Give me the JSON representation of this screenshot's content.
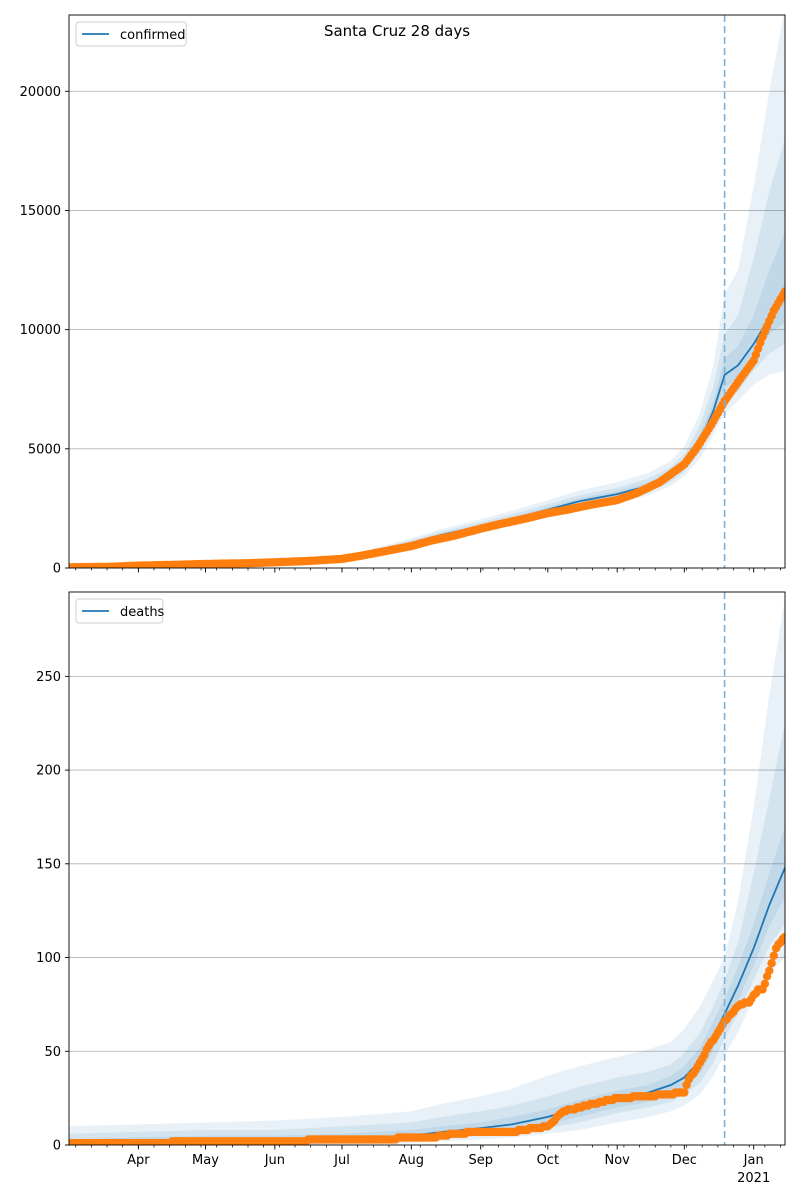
{
  "title": "Santa Cruz 28 days",
  "colors": {
    "model": "#1f77b4",
    "observed": "#ff7f0e",
    "band": "#1f77b4",
    "grid": "#b0b0b0",
    "forecast_line": "#7fb0d6"
  },
  "x_axis": {
    "start": "2020-03-01",
    "end": "2021-01-15",
    "forecast_start": "2020-12-19",
    "month_ticks": [
      {
        "date": "2020-04-01",
        "label": "Apr"
      },
      {
        "date": "2020-05-01",
        "label": "May"
      },
      {
        "date": "2020-06-01",
        "label": "Jun"
      },
      {
        "date": "2020-07-01",
        "label": "Jul"
      },
      {
        "date": "2020-08-01",
        "label": "Aug"
      },
      {
        "date": "2020-09-01",
        "label": "Sep"
      },
      {
        "date": "2020-10-01",
        "label": "Oct"
      },
      {
        "date": "2020-11-01",
        "label": "Nov"
      },
      {
        "date": "2020-12-01",
        "label": "Dec"
      },
      {
        "date": "2021-01-01",
        "label": "Jan"
      }
    ],
    "year_label": "2021"
  },
  "chart_data": [
    {
      "type": "line",
      "legend": "confirmed",
      "legend_position": "upper-left",
      "grid": "y",
      "ylim": [
        0,
        23200
      ],
      "yticks": [
        0,
        5000,
        10000,
        15000,
        20000
      ],
      "model": {
        "x": [
          "2020-03-01",
          "2020-04-01",
          "2020-05-01",
          "2020-06-01",
          "2020-07-01",
          "2020-07-15",
          "2020-08-01",
          "2020-08-15",
          "2020-09-01",
          "2020-09-15",
          "2020-10-01",
          "2020-10-15",
          "2020-11-01",
          "2020-11-15",
          "2020-11-25",
          "2020-12-01",
          "2020-12-08",
          "2020-12-14",
          "2020-12-19",
          "2020-12-25",
          "2021-01-01",
          "2021-01-08",
          "2021-01-15"
        ],
        "y": [
          20,
          80,
          150,
          230,
          330,
          650,
          1050,
          1400,
          1750,
          2050,
          2450,
          2800,
          3100,
          3450,
          3900,
          4350,
          5300,
          6600,
          8100,
          8500,
          9400,
          10500,
          11500
        ]
      },
      "bands": [
        {
          "lower": [
            0,
            40,
            90,
            160,
            250,
            520,
            880,
            1200,
            1500,
            1780,
            2150,
            2450,
            2750,
            3050,
            3450,
            3850,
            4600,
            5600,
            6500,
            7000,
            7700,
            8100,
            8300
          ],
          "upper": [
            100,
            150,
            230,
            320,
            450,
            820,
            1250,
            1650,
            2050,
            2400,
            2850,
            3250,
            3600,
            4000,
            4500,
            5100,
            6500,
            8500,
            11500,
            12500,
            16000,
            20000,
            23500
          ]
        },
        {
          "lower": [
            0,
            55,
            110,
            185,
            280,
            570,
            940,
            1280,
            1600,
            1900,
            2280,
            2600,
            2900,
            3200,
            3620,
            4050,
            4850,
            5950,
            7000,
            7400,
            8300,
            9000,
            9400
          ],
          "upper": [
            70,
            120,
            200,
            290,
            400,
            750,
            1170,
            1550,
            1920,
            2250,
            2680,
            3050,
            3370,
            3750,
            4250,
            4770,
            6000,
            7600,
            9800,
            10600,
            13000,
            15800,
            18000
          ]
        },
        {
          "lower": [
            5,
            65,
            125,
            205,
            305,
            610,
            990,
            1340,
            1680,
            1980,
            2370,
            2700,
            3000,
            3320,
            3760,
            4200,
            5080,
            6280,
            7550,
            7950,
            8850,
            9800,
            10300
          ],
          "upper": [
            45,
            100,
            180,
            260,
            370,
            700,
            1110,
            1470,
            1830,
            2140,
            2560,
            2920,
            3230,
            3590,
            4070,
            4540,
            5620,
            7000,
            8800,
            9300,
            10600,
            12500,
            14100
          ]
        }
      ],
      "observed": {
        "x": [
          "2020-03-01",
          "2020-03-20",
          "2020-04-01",
          "2020-04-20",
          "2020-05-01",
          "2020-05-20",
          "2020-06-01",
          "2020-06-15",
          "2020-07-01",
          "2020-07-10",
          "2020-07-20",
          "2020-08-01",
          "2020-08-10",
          "2020-08-20",
          "2020-09-01",
          "2020-09-10",
          "2020-09-20",
          "2020-10-01",
          "2020-10-10",
          "2020-10-20",
          "2020-11-01",
          "2020-11-10",
          "2020-11-20",
          "2020-12-01",
          "2020-12-07",
          "2020-12-13",
          "2020-12-19",
          "2020-12-25",
          "2021-01-01",
          "2021-01-05",
          "2021-01-10",
          "2021-01-15"
        ],
        "y": [
          30,
          50,
          100,
          140,
          170,
          200,
          240,
          290,
          380,
          520,
          700,
          920,
          1150,
          1350,
          1650,
          1850,
          2050,
          2300,
          2450,
          2650,
          2850,
          3150,
          3600,
          4350,
          5100,
          6000,
          7000,
          7800,
          8700,
          9700,
          10800,
          11600
        ]
      }
    },
    {
      "type": "line",
      "legend": "deaths",
      "legend_position": "upper-left",
      "grid": "y",
      "ylim": [
        0,
        295
      ],
      "yticks": [
        0,
        50,
        100,
        150,
        200,
        250
      ],
      "model": {
        "x": [
          "2020-03-01",
          "2020-04-01",
          "2020-05-01",
          "2020-06-01",
          "2020-07-01",
          "2020-08-01",
          "2020-08-15",
          "2020-09-01",
          "2020-09-15",
          "2020-10-01",
          "2020-10-15",
          "2020-11-01",
          "2020-11-15",
          "2020-11-25",
          "2020-12-01",
          "2020-12-08",
          "2020-12-14",
          "2020-12-19",
          "2020-12-25",
          "2021-01-01",
          "2021-01-08",
          "2021-01-15"
        ],
        "y": [
          0,
          1,
          2,
          2,
          3,
          5,
          7,
          9,
          11,
          15,
          20,
          25,
          28,
          32,
          36,
          45,
          58,
          70,
          85,
          105,
          128,
          148
        ]
      },
      "bands": [
        {
          "lower": [
            0,
            0,
            0,
            0,
            0,
            1,
            2,
            3,
            4,
            6,
            8,
            12,
            15,
            18,
            21,
            27,
            37,
            48,
            60,
            78,
            92,
            100
          ],
          "upper": [
            10,
            11,
            12,
            13,
            15,
            18,
            22,
            26,
            30,
            37,
            42,
            47,
            51,
            55,
            62,
            74,
            88,
            100,
            130,
            180,
            240,
            292
          ]
        },
        {
          "lower": [
            0,
            0,
            0,
            0,
            1,
            2,
            3,
            5,
            6,
            9,
            12,
            17,
            20,
            23,
            27,
            33,
            44,
            57,
            70,
            88,
            106,
            118
          ],
          "upper": [
            6,
            7,
            8,
            8,
            10,
            12,
            15,
            18,
            21,
            26,
            31,
            36,
            39,
            43,
            49,
            60,
            74,
            88,
            108,
            145,
            185,
            225
          ]
        },
        {
          "lower": [
            0,
            0,
            1,
            1,
            2,
            3,
            5,
            6,
            8,
            11,
            15,
            20,
            23,
            27,
            31,
            38,
            51,
            63,
            77,
            96,
            117,
            132
          ],
          "upper": [
            3,
            4,
            5,
            5,
            6,
            8,
            10,
            12,
            15,
            19,
            24,
            29,
            32,
            37,
            42,
            52,
            66,
            78,
            95,
            118,
            145,
            170
          ]
        }
      ],
      "observed": {
        "x": [
          "2020-03-01",
          "2020-04-01",
          "2020-05-01",
          "2020-06-01",
          "2020-07-01",
          "2020-07-20",
          "2020-08-01",
          "2020-08-10",
          "2020-08-20",
          "2020-09-01",
          "2020-09-15",
          "2020-10-01",
          "2020-10-08",
          "2020-10-15",
          "2020-10-25",
          "2020-11-01",
          "2020-11-15",
          "2020-12-01",
          "2020-12-03",
          "2020-12-06",
          "2020-12-09",
          "2020-12-12",
          "2020-12-15",
          "2020-12-18",
          "2020-12-22",
          "2020-12-26",
          "2020-12-30",
          "2021-01-03",
          "2021-01-05",
          "2021-01-08",
          "2021-01-11",
          "2021-01-15"
        ],
        "y": [
          1,
          1,
          2,
          2,
          3,
          3,
          4,
          4,
          6,
          7,
          7,
          10,
          18,
          20,
          23,
          25,
          26,
          28,
          35,
          40,
          46,
          53,
          58,
          64,
          70,
          75,
          76,
          83,
          83,
          93,
          105,
          111
        ]
      }
    }
  ]
}
